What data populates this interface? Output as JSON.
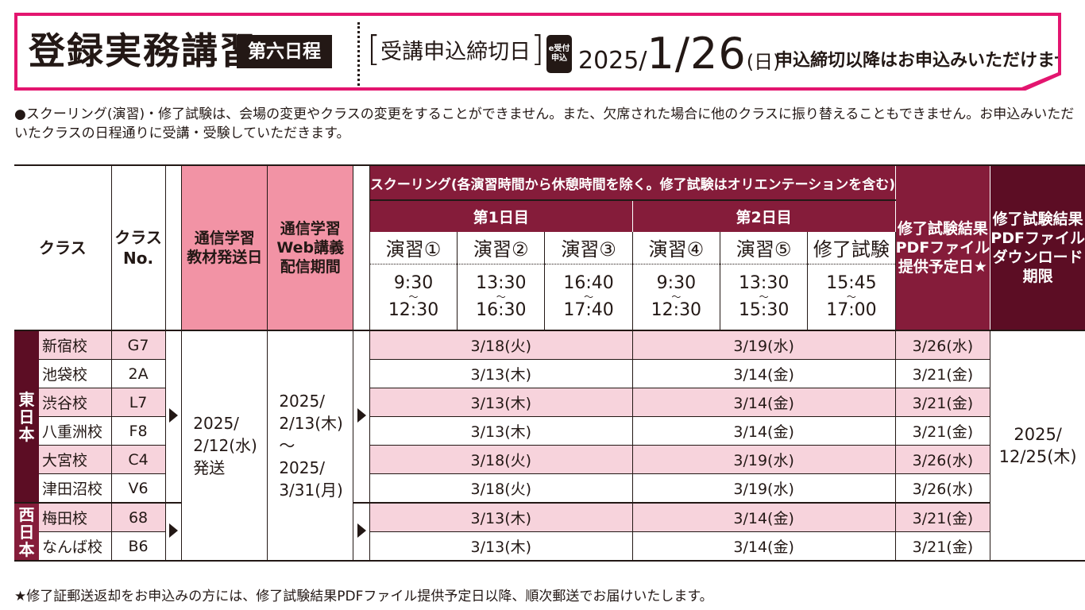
{
  "banner": {
    "title": "登録実務講習",
    "badge": "第六日程",
    "deadline_label": "受講申込締切日",
    "deadline_open": "[",
    "deadline_close": "]",
    "e_badge_top": "e受付",
    "e_badge_bottom": "申込",
    "date_year": "2025/",
    "date_md": "1/26",
    "date_dow": "(日)",
    "note": "申込締切以降はお申込みいただけません。"
  },
  "notice": "●スクーリング(演習)・修了試験は、会場の変更やクラスの変更をすることができません。また、欠席された場合に他のクラスに振り替えることもできません。お申込みいただいたクラスの日程通りに受講・受験していただきます。",
  "headers": {
    "class": "クラス",
    "class_no_1": "クラス",
    "class_no_2": "No.",
    "material_1": "通信学習",
    "material_2": "教材発送日",
    "web_1": "通信学習",
    "web_2": "Web講義",
    "web_3": "配信期間",
    "schooling": "スクーリング(各演習時間から休憩時間を除く。修了試験はオリエンテーションを含む)",
    "day1": "第1日目",
    "day2": "第2日目",
    "result_1": "修了試験結果",
    "result_2": "PDFファイル",
    "result_3": "提供予定日★",
    "download_1": "修了試験結果",
    "download_2": "PDFファイル",
    "download_3": "ダウンロード",
    "download_4": "期限",
    "sessions": [
      {
        "label": "演習①",
        "start": "9:30",
        "tilde": "〜",
        "end": "12:30"
      },
      {
        "label": "演習②",
        "start": "13:30",
        "tilde": "〜",
        "end": "16:30"
      },
      {
        "label": "演習③",
        "start": "16:40",
        "tilde": "〜",
        "end": "17:40"
      },
      {
        "label": "演習④",
        "start": "9:30",
        "tilde": "〜",
        "end": "12:30"
      },
      {
        "label": "演習⑤",
        "start": "13:30",
        "tilde": "〜",
        "end": "15:30"
      },
      {
        "label": "修了試験",
        "start": "15:45",
        "tilde": "〜",
        "end": "17:00"
      }
    ]
  },
  "regions": {
    "east": [
      "東",
      "日",
      "本"
    ],
    "west": [
      "西",
      "日",
      "本"
    ]
  },
  "rows": [
    {
      "school": "新宿校",
      "no": "G7",
      "day1": "3/18(火)",
      "day2": "3/19(水)",
      "result": "3/26(水)"
    },
    {
      "school": "池袋校",
      "no": "2A",
      "day1": "3/13(木)",
      "day2": "3/14(金)",
      "result": "3/21(金)"
    },
    {
      "school": "渋谷校",
      "no": "L7",
      "day1": "3/13(木)",
      "day2": "3/14(金)",
      "result": "3/21(金)"
    },
    {
      "school": "八重洲校",
      "no": "F8",
      "day1": "3/13(木)",
      "day2": "3/14(金)",
      "result": "3/21(金)"
    },
    {
      "school": "大宮校",
      "no": "C4",
      "day1": "3/18(火)",
      "day2": "3/19(水)",
      "result": "3/26(水)"
    },
    {
      "school": "津田沼校",
      "no": "V6",
      "day1": "3/18(火)",
      "day2": "3/19(水)",
      "result": "3/26(水)"
    },
    {
      "school": "梅田校",
      "no": "68",
      "day1": "3/13(木)",
      "day2": "3/14(金)",
      "result": "3/21(金)"
    },
    {
      "school": "なんば校",
      "no": "B6",
      "day1": "3/13(木)",
      "day2": "3/14(金)",
      "result": "3/21(金)"
    }
  ],
  "shared": {
    "material_1": "2025/",
    "material_2": "2/12(水)",
    "material_3": "発送",
    "web_1": "2025/",
    "web_2": "2/13(木)",
    "web_3": "〜",
    "web_4": "2025/",
    "web_5": "3/31(月)",
    "download_1": "2025/",
    "download_2": "12/25(木)"
  },
  "footer": "★修了証郵送返却をお申込みの方には、修了試験結果PDFファイル提供予定日以降、順次郵送でお届けいたします。",
  "colors": {
    "accent_pink": "#e3156f",
    "header_pink": "#f293a5",
    "maroon": "#851c3a",
    "dark_maroon": "#5c0d24",
    "row_pink": "#f7d3dc"
  }
}
